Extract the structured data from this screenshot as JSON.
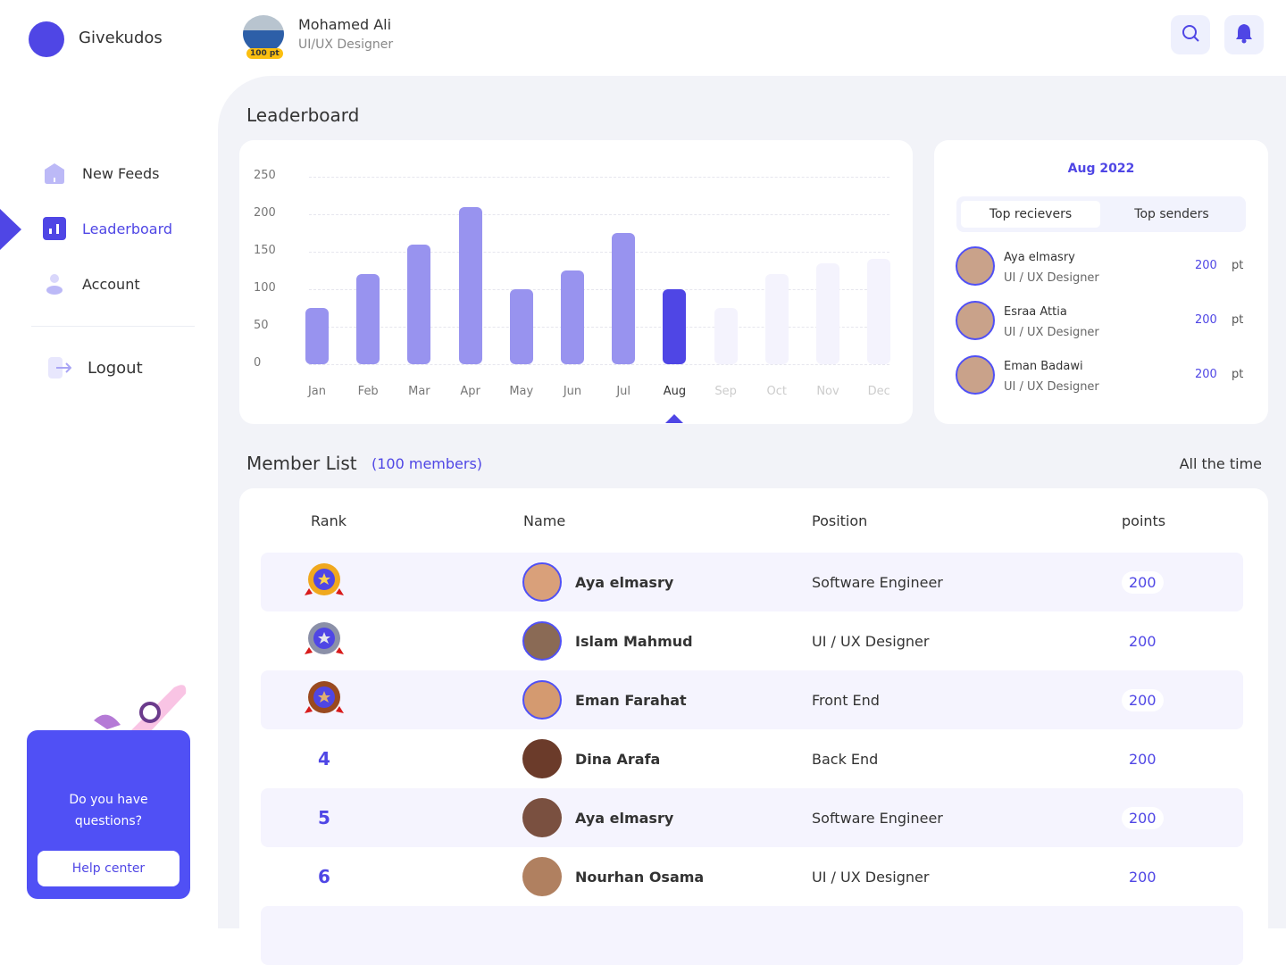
{
  "app": {
    "name": "Givekudos"
  },
  "user": {
    "name": "Mohamed Ali",
    "role": "UI/UX Designer",
    "points_badge": "100 pt"
  },
  "sidebar": {
    "items": [
      {
        "label": "New Feeds",
        "icon": "home-icon"
      },
      {
        "label": "Leaderboard",
        "icon": "chart-icon",
        "active": true
      },
      {
        "label": "Account",
        "icon": "user-icon"
      }
    ],
    "logout": "Logout",
    "help": {
      "text_line1": "Do you have",
      "text_line2": "questions?",
      "button": "Help center"
    }
  },
  "page_title": "Leaderboard",
  "chart_data": {
    "type": "bar",
    "categories": [
      "Jan",
      "Feb",
      "Mar",
      "Apr",
      "May",
      "Jun",
      "Jul",
      "Aug",
      "Sep",
      "Oct",
      "Nov",
      "Dec"
    ],
    "values": [
      75,
      120,
      160,
      210,
      100,
      125,
      175,
      100,
      75,
      120,
      135,
      140
    ],
    "selected": "Aug",
    "future_from_index": 8,
    "ylim": [
      0,
      250
    ],
    "yticks": [
      0,
      50,
      100,
      150,
      200,
      250
    ],
    "grid": true,
    "colors": {
      "past": "#9893ef",
      "selected": "#4f46e5",
      "future": "#f4f3fd"
    }
  },
  "top_panel": {
    "period": "Aug  2022",
    "tabs": [
      "Top recievers",
      "Top senders"
    ],
    "unit": "pt",
    "people": [
      {
        "name": "Aya  elmasry",
        "role": "UI / UX Designer",
        "points": "200"
      },
      {
        "name": "Esraa Attia",
        "role": "UI / UX Designer",
        "points": "200"
      },
      {
        "name": "Eman Badawi",
        "role": "UI / UX Designer",
        "points": "200"
      }
    ]
  },
  "members": {
    "title": "Member List",
    "count": "(100 members)",
    "filter": "All the time",
    "columns": [
      "Rank",
      "Name",
      "Position",
      "points"
    ],
    "rows": [
      {
        "rank": "1",
        "medal": "gold",
        "name": "Aya  elmasry",
        "position": "Software Engineer",
        "points": "200"
      },
      {
        "rank": "2",
        "medal": "silver",
        "name": "Islam Mahmud",
        "position": "UI / UX Designer",
        "points": "200"
      },
      {
        "rank": "3",
        "medal": "bronze",
        "name": "Eman Farahat",
        "position": "Front End",
        "points": "200"
      },
      {
        "rank": "4",
        "name": "Dina Arafa",
        "position": "Back End",
        "points": "200"
      },
      {
        "rank": "5",
        "name": "Aya  elmasry",
        "position": "Software Engineer",
        "points": "200"
      },
      {
        "rank": "6",
        "name": "Nourhan Osama",
        "position": "UI / UX Designer",
        "points": "200"
      }
    ]
  }
}
